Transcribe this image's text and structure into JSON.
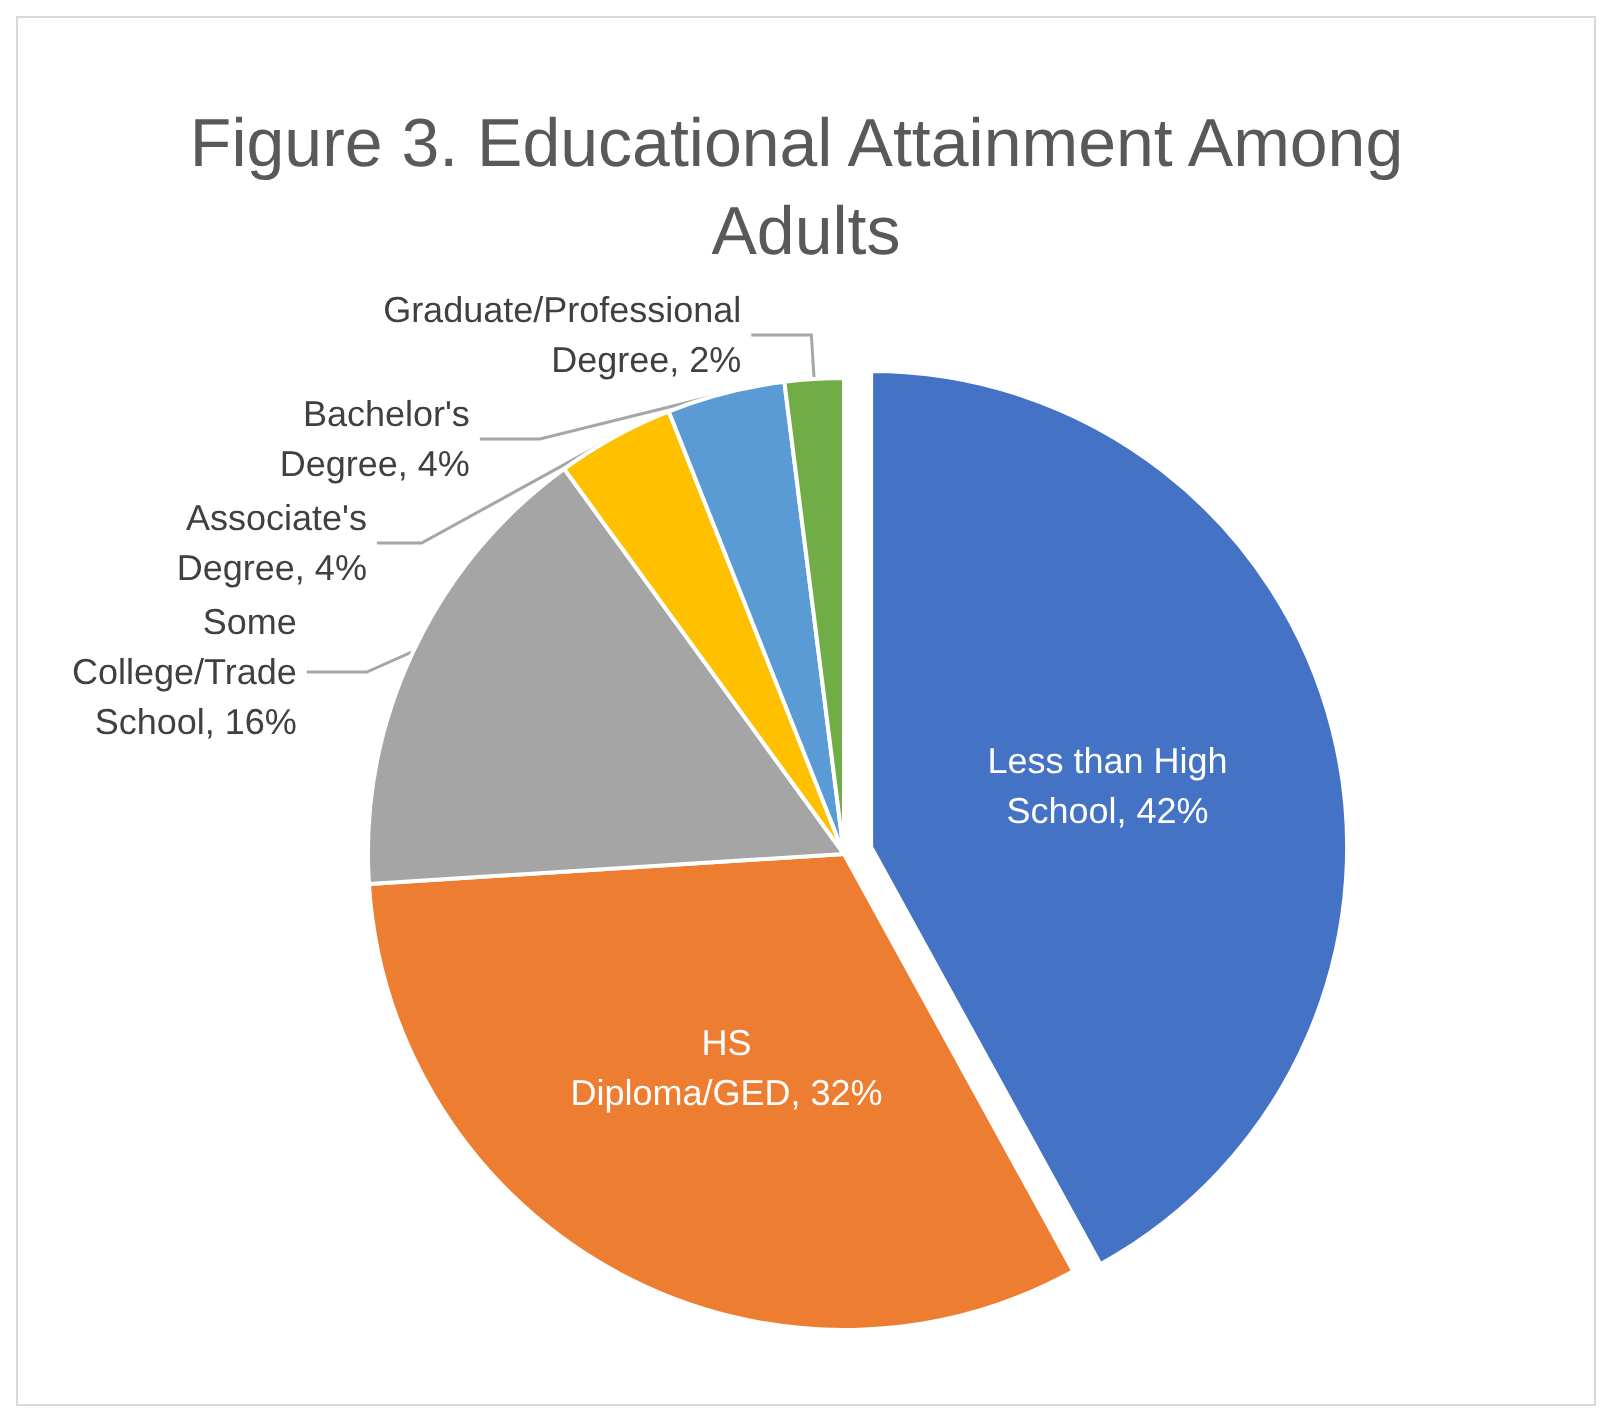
{
  "chart_data": {
    "type": "pie",
    "title": "Figure 3. Educational Attainment Among Adults",
    "categories": [
      "Less than High School",
      "HS Diploma/GED",
      "Some College/Trade School",
      "Associate's Degree",
      "Bachelor's Degree",
      "Graduate/Professional Degree"
    ],
    "values": [
      42,
      32,
      16,
      4,
      4,
      2
    ],
    "colors": [
      "#4472c4",
      "#ed7d31",
      "#a5a5a5",
      "#ffc000",
      "#5b9bd5",
      "#70ad47"
    ],
    "value_labels": [
      "42%",
      "32%",
      "16%",
      "4%",
      "4%",
      "2%"
    ]
  }
}
